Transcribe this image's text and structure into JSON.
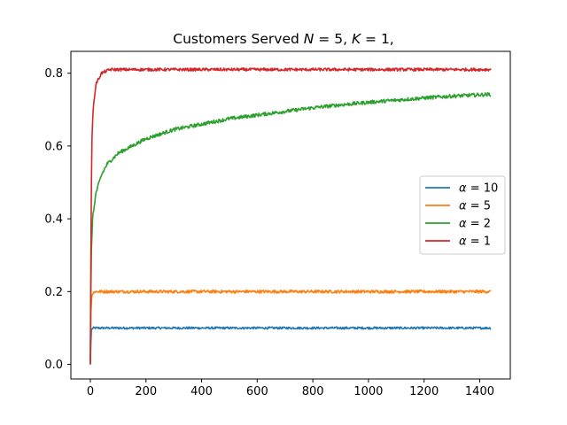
{
  "chart_data": {
    "type": "line",
    "title": "Customers Served N = 5, K = 1,",
    "title_parts": {
      "lead": "Customers Served ",
      "n_var": "N",
      "n_eq": " = 5, ",
      "k_var": "K",
      "k_eq": " = 1,"
    },
    "xlabel": "",
    "ylabel": "",
    "xlim": [
      -70,
      1510
    ],
    "ylim": [
      -0.04,
      0.86
    ],
    "xticks": [
      0,
      200,
      400,
      600,
      800,
      1000,
      1200,
      1400
    ],
    "xtick_labels": [
      "0",
      "200",
      "400",
      "600",
      "800",
      "1000",
      "1200",
      "1400"
    ],
    "yticks": [
      0.0,
      0.2,
      0.4,
      0.6,
      0.8
    ],
    "ytick_labels": [
      "0.0",
      "0.2",
      "0.4",
      "0.6",
      "0.8"
    ],
    "grid": false,
    "legend_position": "center-right",
    "series": [
      {
        "name": "α = 10",
        "legend_var": "α",
        "legend_eq": " = 10",
        "color": "#1f77b4",
        "noise": 0.003,
        "points": [
          [
            0,
            0.0
          ],
          [
            2,
            0.06
          ],
          [
            4,
            0.095
          ],
          [
            10,
            0.1
          ],
          [
            100,
            0.1
          ],
          [
            1440,
            0.1
          ]
        ]
      },
      {
        "name": "α = 5",
        "legend_var": "α",
        "legend_eq": " = 5",
        "color": "#ff7f0e",
        "noise": 0.004,
        "points": [
          [
            0,
            0.0
          ],
          [
            2,
            0.14
          ],
          [
            5,
            0.19
          ],
          [
            15,
            0.2
          ],
          [
            100,
            0.2
          ],
          [
            1440,
            0.2
          ]
        ]
      },
      {
        "name": "α = 2",
        "legend_var": "α",
        "legend_eq": " = 2",
        "color": "#2ca02c",
        "noise": 0.005,
        "points": [
          [
            0,
            0.0
          ],
          [
            3,
            0.3
          ],
          [
            8,
            0.4
          ],
          [
            20,
            0.47
          ],
          [
            40,
            0.52
          ],
          [
            60,
            0.55
          ],
          [
            100,
            0.58
          ],
          [
            150,
            0.6
          ],
          [
            200,
            0.62
          ],
          [
            300,
            0.645
          ],
          [
            400,
            0.66
          ],
          [
            500,
            0.675
          ],
          [
            600,
            0.685
          ],
          [
            700,
            0.695
          ],
          [
            800,
            0.705
          ],
          [
            900,
            0.713
          ],
          [
            1000,
            0.72
          ],
          [
            1100,
            0.726
          ],
          [
            1200,
            0.732
          ],
          [
            1300,
            0.737
          ],
          [
            1440,
            0.742
          ]
        ]
      },
      {
        "name": "α = 1",
        "legend_var": "α",
        "legend_eq": " = 1",
        "color": "#d62728",
        "noise": 0.004,
        "points": [
          [
            0,
            0.0
          ],
          [
            3,
            0.45
          ],
          [
            6,
            0.62
          ],
          [
            10,
            0.7
          ],
          [
            20,
            0.77
          ],
          [
            40,
            0.8
          ],
          [
            70,
            0.81
          ],
          [
            200,
            0.81
          ],
          [
            1440,
            0.81
          ]
        ]
      }
    ]
  }
}
